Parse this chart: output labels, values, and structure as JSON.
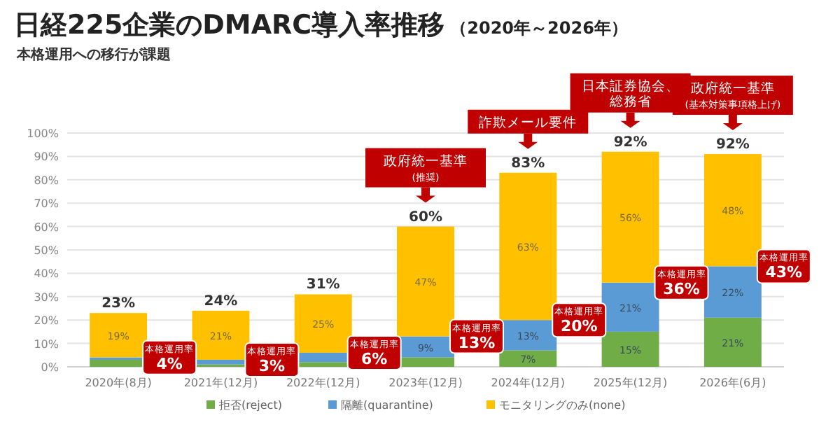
{
  "chart_data": {
    "type": "bar",
    "stacked": true,
    "title": "日経225企業のDMARC導入率推移",
    "subtitle": "（2020年～2026年）",
    "annotations": [
      "本格運用への移行が課題",
      "政府統一基準\n(推奨)",
      "詐欺メール要件",
      "日本証券協会、総務省",
      "政府統一基準\n(基本対策事項格上げ)",
      {
        "text": "本格運用率\n4%",
        "x": "2020年(8月)",
        "y": 4
      },
      {
        "text": "本格運用率\n3%",
        "x": "2021年(12月)",
        "y": 3
      },
      {
        "text": "本格運用率\n6%",
        "x": "2022年(12月)",
        "y": 6
      },
      {
        "text": "本格運用率\n13%",
        "x": "2023年(12月)",
        "y": 13
      },
      {
        "text": "本格運用率\n20%",
        "x": "2024年(12月)",
        "y": 20
      },
      {
        "text": "本格運用率\n36%",
        "x": "2025年(12月)",
        "y": 36
      },
      {
        "text": "本格運用率\n43%",
        "x": "2026年(6月)",
        "y": 43
      }
    ],
    "categories": [
      "2020年(8月)",
      "2021年(12月)",
      "2022年(12月)",
      "2023年(12月)",
      "2024年(12月)",
      "2025年(12月)",
      "2026年(6月)"
    ],
    "series": [
      {
        "name": "拒否(reject)",
        "color": "#70ad47",
        "values": [
          3,
          1,
          2,
          4,
          7,
          15,
          21
        ],
        "value_labels": [
          null,
          null,
          null,
          null,
          "7%",
          "15%",
          "21%"
        ]
      },
      {
        "name": "隔離(quarantine)",
        "color": "#5b9bd5",
        "values": [
          1,
          2,
          4,
          9,
          13,
          21,
          22
        ],
        "value_labels": [
          null,
          null,
          null,
          "9%",
          "13%",
          "21%",
          "22%"
        ]
      },
      {
        "name": "モニタリングのみ(none)",
        "color": "#ffc000",
        "values": [
          19,
          21,
          25,
          47,
          63,
          56,
          48
        ],
        "value_labels": [
          "19%",
          "21%",
          "25%",
          "47%",
          "63%",
          "56%",
          "48%"
        ]
      }
    ],
    "totals": [
      "23%",
      "24%",
      "31%",
      "60%",
      "83%",
      "92%",
      "92%"
    ],
    "ylim": [
      0,
      100
    ],
    "yticks": [
      {
        "value": 0,
        "label": "0%"
      },
      {
        "value": 10,
        "label": "10%"
      },
      {
        "value": 20,
        "label": "20%"
      },
      {
        "value": 30,
        "label": "30%"
      },
      {
        "value": 40,
        "label": "40%"
      },
      {
        "value": 50,
        "label": "50%"
      },
      {
        "value": 60,
        "label": "60%"
      },
      {
        "value": 70,
        "label": "70%"
      },
      {
        "value": 80,
        "label": "80%"
      },
      {
        "value": 90,
        "label": "90%"
      },
      {
        "value": 100,
        "label": "100%"
      }
    ],
    "grid": "y",
    "legend": "bottom"
  }
}
